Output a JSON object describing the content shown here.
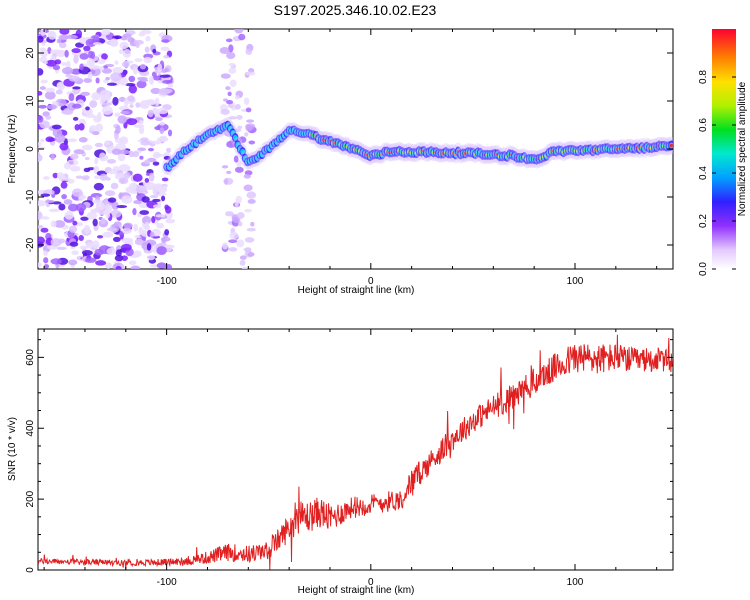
{
  "title": "S197.2025.346.10.02.E23",
  "chart_data": [
    {
      "type": "heatmap",
      "name": "spectrogram",
      "xlabel": "Height of straight line (km)",
      "ylabel": "Frequency (Hz)",
      "xlim": [
        -163,
        148
      ],
      "ylim": [
        -25,
        25
      ],
      "x_ticks": [
        -100,
        0,
        100
      ],
      "x_tick_labels": [
        "-100",
        "0",
        "100"
      ],
      "y_ticks": [
        -20,
        -10,
        0,
        10,
        20
      ],
      "y_tick_labels": [
        "-20",
        "-10",
        "0",
        "10",
        "20"
      ],
      "colorbar": {
        "label": "Normalized spectral amplitude",
        "range": [
          0,
          1
        ],
        "ticks": [
          0.0,
          0.2,
          0.4,
          0.6,
          0.8
        ],
        "tick_labels": [
          "0.0",
          "0.2",
          "0.4",
          "0.6",
          "0.8"
        ]
      },
      "ridge": {
        "x": [
          -100,
          -90,
          -80,
          -70,
          -60,
          -50,
          -40,
          -30,
          -20,
          -10,
          0,
          10,
          20,
          30,
          40,
          50,
          60,
          70,
          80,
          90,
          100,
          110,
          120,
          130,
          140,
          148
        ],
        "y": [
          -4,
          0,
          3,
          5,
          -3,
          0,
          4,
          3,
          1.5,
          0.3,
          -1.5,
          -0.5,
          -0.6,
          -0.7,
          -0.8,
          -0.9,
          -1.2,
          -1.4,
          -2.3,
          -0.5,
          -0.3,
          -0.2,
          0,
          0.2,
          0.4,
          0.5
        ]
      },
      "noise_band": [
        -163,
        -98
      ]
    },
    {
      "type": "line",
      "name": "snr",
      "xlabel": "Height of straight line (km)",
      "ylabel": "SNR (10 * v/v)",
      "xlim": [
        -163,
        148
      ],
      "ylim": [
        0,
        680
      ],
      "x_ticks": [
        -100,
        0,
        100
      ],
      "x_tick_labels": [
        "-100",
        "0",
        "100"
      ],
      "y_ticks": [
        0,
        200,
        400,
        600
      ],
      "y_tick_labels": [
        "0",
        "200",
        "400",
        "600"
      ],
      "series": [
        {
          "name": "SNR",
          "color": "#e02020",
          "x": [
            -163,
            -140,
            -120,
            -100,
            -90,
            -80,
            -70,
            -60,
            -50,
            -40,
            -35,
            -30,
            -25,
            -20,
            -10,
            0,
            10,
            15,
            20,
            30,
            40,
            50,
            60,
            70,
            80,
            90,
            100,
            110,
            120,
            130,
            140,
            148
          ],
          "values": [
            25,
            22,
            20,
            22,
            25,
            35,
            50,
            45,
            55,
            120,
            150,
            150,
            165,
            145,
            175,
            185,
            195,
            200,
            250,
            310,
            370,
            420,
            460,
            490,
            530,
            570,
            600,
            595,
            600,
            590,
            595,
            585
          ],
          "noise_amplitude": [
            8,
            8,
            8,
            10,
            12,
            18,
            25,
            25,
            25,
            40,
            45,
            45,
            45,
            40,
            30,
            30,
            30,
            30,
            35,
            35,
            35,
            35,
            35,
            40,
            40,
            40,
            45,
            45,
            40,
            35,
            35,
            30
          ]
        }
      ]
    }
  ]
}
